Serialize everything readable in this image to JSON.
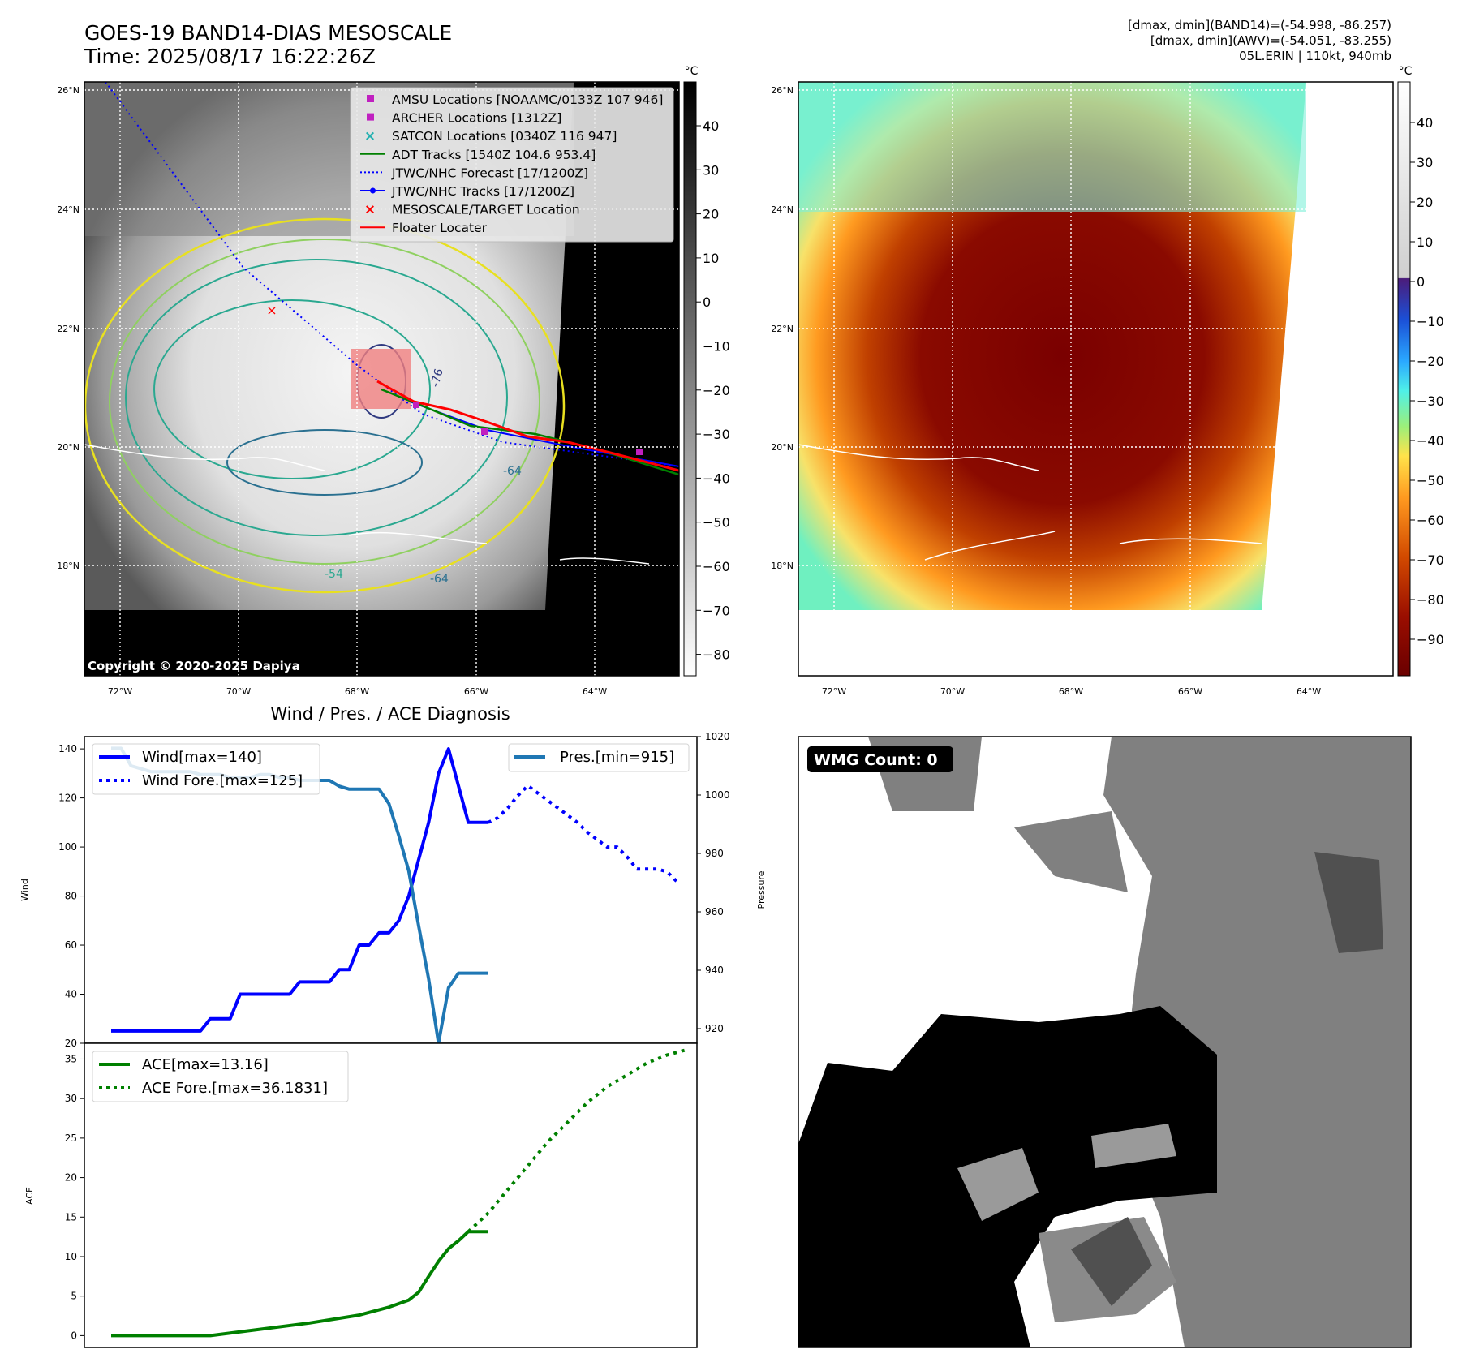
{
  "header": {
    "title_line1": "GOES-19 BAND14-DIAS MESOSCALE",
    "title_line2": "Time: 2025/08/17 16:22:26Z",
    "stats_line1": "[dmax, dmin](BAND14)=(-54.998, -86.257)",
    "stats_line2": "[dmax, dmin](AWV)=(-54.051, -83.255)",
    "stats_line3": "05L.ERIN | 110kt, 940mb"
  },
  "map": {
    "lat_labels": [
      "26°N",
      "24°N",
      "22°N",
      "20°N",
      "18°N"
    ],
    "lon_labels": [
      "72°W",
      "70°W",
      "68°W",
      "66°W",
      "64°W"
    ],
    "copyright": "Copyright © 2020-2025 Dapiya",
    "contour_labels": [
      "-76",
      "-64",
      "-54",
      "-64"
    ],
    "legend": [
      {
        "label": "AMSU Locations [NOAAMC/0133Z 107 946]",
        "marker": "square",
        "color": "#c020c0"
      },
      {
        "label": "ARCHER Locations [1312Z]",
        "marker": "square",
        "color": "#c020c0"
      },
      {
        "label": "SATCON Locations [0340Z 116 947]",
        "marker": "x",
        "color": "#20b0b0"
      },
      {
        "label": "ADT Tracks [1540Z 104.6 953.4]",
        "marker": "line",
        "color": "#008000"
      },
      {
        "label": "JTWC/NHC Forecast [17/1200Z]",
        "marker": "dotted",
        "color": "#0000ff"
      },
      {
        "label": "JTWC/NHC Tracks [17/1200Z]",
        "marker": "line-dot",
        "color": "#0000ff"
      },
      {
        "label": "MESOSCALE/TARGET Location",
        "marker": "x",
        "color": "#ff0000"
      },
      {
        "label": "Floater Locater",
        "marker": "line",
        "color": "#ff0000"
      }
    ],
    "gray_colorbar": {
      "unit": "°C",
      "ticks": [
        "40",
        "30",
        "20",
        "10",
        "0",
        "−10",
        "−20",
        "−30",
        "−40",
        "−50",
        "−60",
        "−70",
        "−80"
      ]
    },
    "color_colorbar": {
      "unit": "°C",
      "ticks": [
        "40",
        "30",
        "20",
        "10",
        "0",
        "−10",
        "−20",
        "−30",
        "−40",
        "−50",
        "−60",
        "−70",
        "−80",
        "−90"
      ]
    }
  },
  "wmg": {
    "label": "WMG Count: 0"
  },
  "chart_data": [
    {
      "type": "line",
      "title": "Wind / Pres. / ACE Diagnosis",
      "ylabel": "Wind",
      "y2label": "Pressure",
      "ylim": [
        20,
        145
      ],
      "y2lim": [
        915,
        1020
      ],
      "yticks": [
        "20",
        "40",
        "60",
        "80",
        "100",
        "120",
        "140"
      ],
      "y2ticks": [
        "920",
        "940",
        "960",
        "980",
        "1000",
        "1020"
      ],
      "series": [
        {
          "name": "Wind[max=140]",
          "color": "#0000ff",
          "style": "solid",
          "axis": "left",
          "x": [
            0,
            9,
            10,
            11,
            12,
            13,
            14,
            15,
            16,
            17,
            18,
            19,
            20,
            21,
            22,
            23,
            24,
            25,
            26,
            27,
            28,
            29,
            30,
            31,
            32,
            33,
            34,
            35,
            36,
            37,
            38
          ],
          "values": [
            25,
            25,
            30,
            30,
            30,
            40,
            40,
            40,
            40,
            40,
            40,
            45,
            45,
            45,
            45,
            50,
            50,
            60,
            60,
            65,
            65,
            70,
            80,
            95,
            110,
            130,
            140,
            125,
            110,
            110,
            110
          ]
        },
        {
          "name": "Wind Fore.[max=125]",
          "color": "#0000ff",
          "style": "dotted",
          "axis": "left",
          "x": [
            38,
            39,
            40,
            41,
            42,
            43,
            44,
            45,
            46,
            47,
            48,
            49,
            50,
            51,
            52,
            53,
            54,
            55,
            56,
            57
          ],
          "values": [
            110,
            112,
            116,
            121,
            125,
            122,
            119,
            116,
            113,
            110,
            106,
            103,
            100,
            100,
            96,
            91,
            91,
            91,
            90,
            86
          ]
        },
        {
          "name": "Pres.[min=915]",
          "color": "#1f77b4",
          "style": "solid",
          "axis": "right",
          "x": [
            0,
            1,
            2,
            3,
            4,
            5,
            6,
            7,
            8,
            9,
            10,
            11,
            12,
            13,
            14,
            15,
            16,
            17,
            18,
            19,
            20,
            21,
            22,
            23,
            24,
            25,
            26,
            27,
            28,
            29,
            30,
            31,
            32,
            33,
            34,
            35,
            36,
            37,
            38
          ],
          "values": [
            1016,
            1016,
            1010,
            1009,
            1008,
            1008,
            1008,
            1008,
            1008,
            1007,
            1007,
            1007,
            1006,
            1006,
            1006,
            1007,
            1007,
            1006,
            1006,
            1005,
            1005,
            1005,
            1005,
            1003,
            1002,
            1002,
            1002,
            1002,
            997,
            986,
            974,
            955,
            937,
            915,
            934,
            939,
            939,
            939,
            939
          ]
        }
      ]
    },
    {
      "type": "line",
      "ylabel": "ACE",
      "ylim": [
        -1.5,
        37
      ],
      "yticks": [
        "0",
        "5",
        "10",
        "15",
        "20",
        "25",
        "30",
        "35"
      ],
      "series": [
        {
          "name": "ACE[max=13.16]",
          "color": "#008000",
          "style": "solid",
          "x": [
            0,
            10,
            15,
            20,
            25,
            28,
            30,
            31,
            32,
            33,
            34,
            35,
            36,
            37,
            38
          ],
          "values": [
            0,
            0,
            0.8,
            1.6,
            2.6,
            3.6,
            4.5,
            5.5,
            7.5,
            9.4,
            11,
            12,
            13.16,
            13.16,
            13.16
          ]
        },
        {
          "name": "ACE Fore.[max=36.1831]",
          "color": "#008000",
          "style": "dotted",
          "x": [
            36,
            38,
            40,
            42,
            44,
            46,
            48,
            50,
            52,
            54,
            56,
            58
          ],
          "values": [
            13.16,
            15.5,
            18.5,
            21.5,
            24.5,
            27,
            29.5,
            31.5,
            33,
            34.5,
            35.5,
            36.18
          ]
        }
      ]
    }
  ]
}
